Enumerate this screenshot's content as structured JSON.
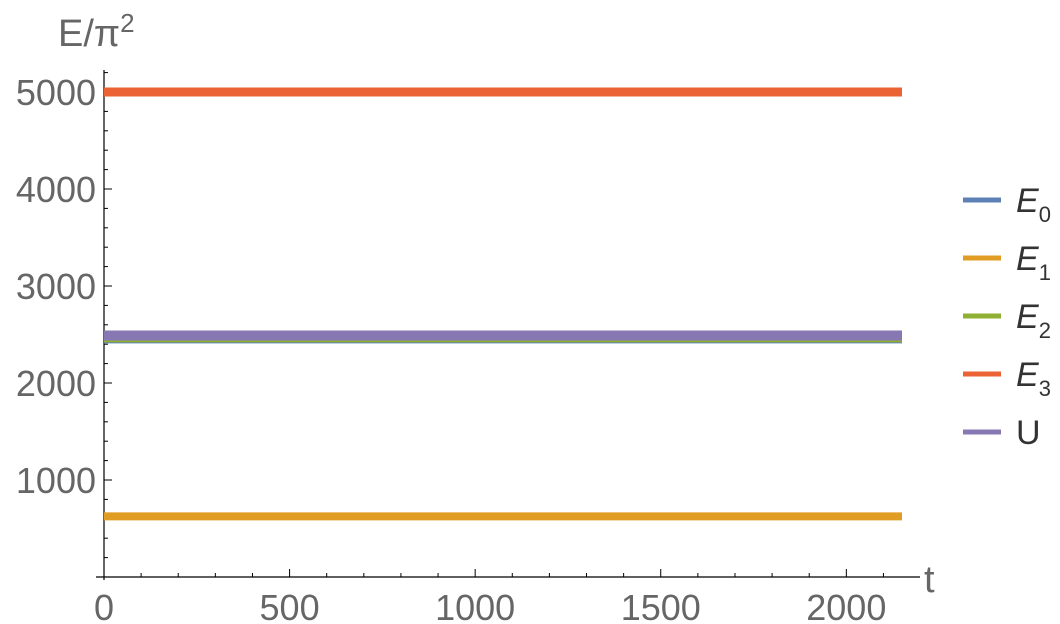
{
  "chart_data": {
    "type": "line",
    "xlabel": "t",
    "ylabel": "E/π",
    "ylabel_sup": "2",
    "xlim": [
      0,
      2150
    ],
    "ylim": [
      0,
      5250
    ],
    "x_ticks": [
      "0",
      "500",
      "1000",
      "1500",
      "2000"
    ],
    "y_ticks": [
      "1000",
      "2000",
      "3000",
      "4000",
      "5000"
    ],
    "x_tick_values": [
      0,
      500,
      1000,
      1500,
      2000
    ],
    "y_tick_values": [
      1000,
      2000,
      3000,
      4000,
      5000
    ],
    "legend_position": "right",
    "series": [
      {
        "name": "E",
        "sub": "0",
        "italic": true,
        "color": "#5e81b5",
        "x": [
          0,
          2150
        ],
        "y": [
          2450,
          2450
        ]
      },
      {
        "name": "E",
        "sub": "1",
        "italic": true,
        "color": "#e19c24",
        "x": [
          0,
          2150
        ],
        "y": [
          625,
          625
        ]
      },
      {
        "name": "E",
        "sub": "2",
        "italic": true,
        "color": "#8fb032",
        "x": [
          0,
          2150
        ],
        "y": [
          2450,
          2450
        ]
      },
      {
        "name": "E",
        "sub": "3",
        "italic": true,
        "color": "#eb6235",
        "x": [
          0,
          2150
        ],
        "y": [
          5000,
          5000
        ]
      },
      {
        "name": "U",
        "sub": "",
        "italic": false,
        "color": "#8778b3",
        "x": [
          0,
          2150
        ],
        "y": [
          2490,
          2490
        ]
      }
    ]
  }
}
